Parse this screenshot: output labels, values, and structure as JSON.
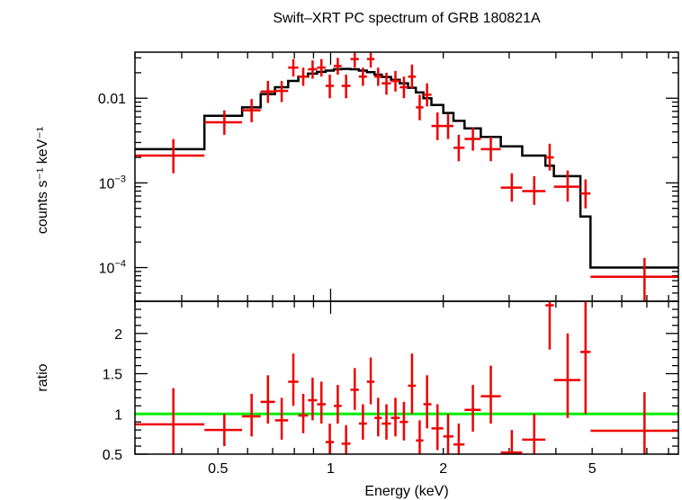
{
  "chart_data": {
    "type": "scatter",
    "title": "Swift–XRT PC spectrum of GRB 180821A",
    "xlabel": "Energy (keV)",
    "xscale": "log",
    "xlim": [
      0.3,
      8.5
    ],
    "x_ticks": [
      {
        "v": 0.5,
        "label": "0.5"
      },
      {
        "v": 1,
        "label": "1"
      },
      {
        "v": 2,
        "label": "2"
      },
      {
        "v": 5,
        "label": "5"
      }
    ],
    "top": {
      "ylabel": "counts s⁻¹ keV⁻¹",
      "yscale": "log",
      "ylim": [
        4e-05,
        0.035
      ],
      "y_tick_labels": [
        {
          "v": 0.01,
          "base": "0.01",
          "exp": ""
        },
        {
          "v": 0.001,
          "base": "10",
          "exp": "−3"
        },
        {
          "v": 0.0001,
          "base": "10",
          "exp": "−4"
        }
      ],
      "data": [
        {
          "x": 0.38,
          "xlo": 0.3,
          "xhi": 0.46,
          "y": 0.0021,
          "ylo": 0.0013,
          "yhi": 0.0033
        },
        {
          "x": 0.52,
          "xlo": 0.46,
          "xhi": 0.58,
          "y": 0.0052,
          "ylo": 0.0037,
          "yhi": 0.0072
        },
        {
          "x": 0.615,
          "xlo": 0.58,
          "xhi": 0.65,
          "y": 0.0072,
          "ylo": 0.0052,
          "yhi": 0.0098
        },
        {
          "x": 0.68,
          "xlo": 0.65,
          "xhi": 0.71,
          "y": 0.012,
          "ylo": 0.0088,
          "yhi": 0.016
        },
        {
          "x": 0.74,
          "xlo": 0.71,
          "xhi": 0.77,
          "y": 0.0122,
          "ylo": 0.009,
          "yhi": 0.016
        },
        {
          "x": 0.795,
          "xlo": 0.77,
          "xhi": 0.82,
          "y": 0.023,
          "ylo": 0.018,
          "yhi": 0.029
        },
        {
          "x": 0.845,
          "xlo": 0.82,
          "xhi": 0.87,
          "y": 0.018,
          "ylo": 0.014,
          "yhi": 0.023
        },
        {
          "x": 0.895,
          "xlo": 0.87,
          "xhi": 0.92,
          "y": 0.022,
          "ylo": 0.017,
          "yhi": 0.028
        },
        {
          "x": 0.945,
          "xlo": 0.92,
          "xhi": 0.97,
          "y": 0.023,
          "ylo": 0.018,
          "yhi": 0.029
        },
        {
          "x": 0.995,
          "xlo": 0.97,
          "xhi": 1.02,
          "y": 0.014,
          "ylo": 0.01,
          "yhi": 0.019
        },
        {
          "x": 1.045,
          "xlo": 1.02,
          "xhi": 1.07,
          "y": 0.024,
          "ylo": 0.019,
          "yhi": 0.03
        },
        {
          "x": 1.1,
          "xlo": 1.07,
          "xhi": 1.13,
          "y": 0.014,
          "ylo": 0.01,
          "yhi": 0.019
        },
        {
          "x": 1.16,
          "xlo": 1.13,
          "xhi": 1.19,
          "y": 0.029,
          "ylo": 0.023,
          "yhi": 0.035
        },
        {
          "x": 1.22,
          "xlo": 1.19,
          "xhi": 1.25,
          "y": 0.018,
          "ylo": 0.014,
          "yhi": 0.023
        },
        {
          "x": 1.28,
          "xlo": 1.25,
          "xhi": 1.31,
          "y": 0.029,
          "ylo": 0.023,
          "yhi": 0.035
        },
        {
          "x": 1.34,
          "xlo": 1.31,
          "xhi": 1.37,
          "y": 0.018,
          "ylo": 0.014,
          "yhi": 0.023
        },
        {
          "x": 1.41,
          "xlo": 1.37,
          "xhi": 1.45,
          "y": 0.015,
          "ylo": 0.011,
          "yhi": 0.02
        },
        {
          "x": 1.49,
          "xlo": 1.45,
          "xhi": 1.53,
          "y": 0.016,
          "ylo": 0.012,
          "yhi": 0.021
        },
        {
          "x": 1.57,
          "xlo": 1.53,
          "xhi": 1.61,
          "y": 0.0135,
          "ylo": 0.01,
          "yhi": 0.018
        },
        {
          "x": 1.65,
          "xlo": 1.61,
          "xhi": 1.69,
          "y": 0.018,
          "ylo": 0.013,
          "yhi": 0.025
        },
        {
          "x": 1.73,
          "xlo": 1.69,
          "xhi": 1.77,
          "y": 0.0078,
          "ylo": 0.0055,
          "yhi": 0.011
        },
        {
          "x": 1.81,
          "xlo": 1.77,
          "xhi": 1.86,
          "y": 0.011,
          "ylo": 0.008,
          "yhi": 0.015
        },
        {
          "x": 1.93,
          "xlo": 1.86,
          "xhi": 2.0,
          "y": 0.0047,
          "ylo": 0.0032,
          "yhi": 0.0068
        },
        {
          "x": 2.06,
          "xlo": 2.0,
          "xhi": 2.13,
          "y": 0.0047,
          "ylo": 0.0033,
          "yhi": 0.0065
        },
        {
          "x": 2.2,
          "xlo": 2.13,
          "xhi": 2.28,
          "y": 0.0026,
          "ylo": 0.0018,
          "yhi": 0.0037
        },
        {
          "x": 2.4,
          "xlo": 2.28,
          "xhi": 2.52,
          "y": 0.0033,
          "ylo": 0.0024,
          "yhi": 0.0045
        },
        {
          "x": 2.68,
          "xlo": 2.52,
          "xhi": 2.85,
          "y": 0.0025,
          "ylo": 0.0018,
          "yhi": 0.0035
        },
        {
          "x": 3.05,
          "xlo": 2.85,
          "xhi": 3.25,
          "y": 0.00088,
          "ylo": 0.0006,
          "yhi": 0.0013
        },
        {
          "x": 3.5,
          "xlo": 3.25,
          "xhi": 3.75,
          "y": 0.0008,
          "ylo": 0.00055,
          "yhi": 0.0012
        },
        {
          "x": 3.85,
          "xlo": 3.75,
          "xhi": 3.95,
          "y": 0.002,
          "ylo": 0.0014,
          "yhi": 0.0029
        },
        {
          "x": 4.3,
          "xlo": 3.95,
          "xhi": 4.65,
          "y": 0.0009,
          "ylo": 0.0006,
          "yhi": 0.0014
        },
        {
          "x": 4.8,
          "xlo": 4.65,
          "xhi": 4.95,
          "y": 0.00075,
          "ylo": 0.0005,
          "yhi": 0.0011
        },
        {
          "x": 6.9,
          "xlo": 4.95,
          "xhi": 8.5,
          "y": 7.8e-05,
          "ylo": 3.5e-05,
          "yhi": 0.00013
        }
      ],
      "model": [
        {
          "x0": 0.3,
          "x1": 0.46,
          "y": 0.0025
        },
        {
          "x0": 0.46,
          "x1": 0.58,
          "y": 0.0062
        },
        {
          "x0": 0.58,
          "x1": 0.65,
          "y": 0.0078
        },
        {
          "x0": 0.65,
          "x1": 0.71,
          "y": 0.0112
        },
        {
          "x0": 0.71,
          "x1": 0.77,
          "y": 0.0135
        },
        {
          "x0": 0.77,
          "x1": 0.82,
          "y": 0.016
        },
        {
          "x0": 0.82,
          "x1": 0.87,
          "y": 0.018
        },
        {
          "x0": 0.87,
          "x1": 0.92,
          "y": 0.0195
        },
        {
          "x0": 0.92,
          "x1": 0.97,
          "y": 0.0205
        },
        {
          "x0": 0.97,
          "x1": 1.02,
          "y": 0.0212
        },
        {
          "x0": 1.02,
          "x1": 1.07,
          "y": 0.022
        },
        {
          "x0": 1.07,
          "x1": 1.13,
          "y": 0.0222
        },
        {
          "x0": 1.13,
          "x1": 1.19,
          "y": 0.022
        },
        {
          "x0": 1.19,
          "x1": 1.25,
          "y": 0.0212
        },
        {
          "x0": 1.25,
          "x1": 1.31,
          "y": 0.0203
        },
        {
          "x0": 1.31,
          "x1": 1.37,
          "y": 0.019
        },
        {
          "x0": 1.37,
          "x1": 1.45,
          "y": 0.0178
        },
        {
          "x0": 1.45,
          "x1": 1.53,
          "y": 0.0165
        },
        {
          "x0": 1.53,
          "x1": 1.61,
          "y": 0.015
        },
        {
          "x0": 1.61,
          "x1": 1.69,
          "y": 0.0133
        },
        {
          "x0": 1.69,
          "x1": 1.77,
          "y": 0.0117
        },
        {
          "x0": 1.77,
          "x1": 1.86,
          "y": 0.01
        },
        {
          "x0": 1.86,
          "x1": 2.0,
          "y": 0.0083
        },
        {
          "x0": 2.0,
          "x1": 2.13,
          "y": 0.0067
        },
        {
          "x0": 2.13,
          "x1": 2.28,
          "y": 0.0054
        },
        {
          "x0": 2.28,
          "x1": 2.52,
          "y": 0.0044
        },
        {
          "x0": 2.52,
          "x1": 2.85,
          "y": 0.0035
        },
        {
          "x0": 2.85,
          "x1": 3.25,
          "y": 0.0027
        },
        {
          "x0": 3.25,
          "x1": 3.75,
          "y": 0.0021
        },
        {
          "x0": 3.75,
          "x1": 3.95,
          "y": 0.0016
        },
        {
          "x0": 3.95,
          "x1": 4.65,
          "y": 0.0012
        },
        {
          "x0": 4.65,
          "x1": 4.95,
          "y": 0.0004
        },
        {
          "x0": 4.95,
          "x1": 8.5,
          "y": 0.0001
        }
      ]
    },
    "bottom": {
      "ylabel": "ratio",
      "ylim": [
        0.5,
        2.4
      ],
      "y_ticks": [
        {
          "v": 0.5,
          "label": "0.5"
        },
        {
          "v": 1,
          "label": "1"
        },
        {
          "v": 1.5,
          "label": "1.5"
        },
        {
          "v": 2,
          "label": "2"
        }
      ],
      "reference_line": 1,
      "data": [
        {
          "x": 0.38,
          "xlo": 0.3,
          "xhi": 0.46,
          "y": 0.87,
          "ylo": 0.5,
          "yhi": 1.32
        },
        {
          "x": 0.52,
          "xlo": 0.46,
          "xhi": 0.58,
          "y": 0.8,
          "ylo": 0.6,
          "yhi": 1.0
        },
        {
          "x": 0.615,
          "xlo": 0.58,
          "xhi": 0.65,
          "y": 0.97,
          "ylo": 0.72,
          "yhi": 1.25
        },
        {
          "x": 0.68,
          "xlo": 0.65,
          "xhi": 0.71,
          "y": 1.15,
          "ylo": 0.88,
          "yhi": 1.48
        },
        {
          "x": 0.74,
          "xlo": 0.71,
          "xhi": 0.77,
          "y": 0.92,
          "ylo": 0.68,
          "yhi": 1.2
        },
        {
          "x": 0.795,
          "xlo": 0.77,
          "xhi": 0.82,
          "y": 1.4,
          "ylo": 1.1,
          "yhi": 1.75
        },
        {
          "x": 0.845,
          "xlo": 0.82,
          "xhi": 0.87,
          "y": 0.98,
          "ylo": 0.76,
          "yhi": 1.25
        },
        {
          "x": 0.895,
          "xlo": 0.87,
          "xhi": 0.92,
          "y": 1.17,
          "ylo": 0.92,
          "yhi": 1.45
        },
        {
          "x": 0.945,
          "xlo": 0.92,
          "xhi": 0.97,
          "y": 1.12,
          "ylo": 0.88,
          "yhi": 1.4
        },
        {
          "x": 0.995,
          "xlo": 0.97,
          "xhi": 1.02,
          "y": 0.65,
          "ylo": 0.5,
          "yhi": 0.88
        },
        {
          "x": 1.045,
          "xlo": 1.02,
          "xhi": 1.07,
          "y": 1.1,
          "ylo": 0.88,
          "yhi": 1.36
        },
        {
          "x": 1.1,
          "xlo": 1.07,
          "xhi": 1.13,
          "y": 0.63,
          "ylo": 0.47,
          "yhi": 0.86
        },
        {
          "x": 1.16,
          "xlo": 1.13,
          "xhi": 1.19,
          "y": 1.3,
          "ylo": 1.05,
          "yhi": 1.57
        },
        {
          "x": 1.22,
          "xlo": 1.19,
          "xhi": 1.25,
          "y": 0.88,
          "ylo": 0.68,
          "yhi": 1.12
        },
        {
          "x": 1.28,
          "xlo": 1.25,
          "xhi": 1.31,
          "y": 1.4,
          "ylo": 1.12,
          "yhi": 1.7
        },
        {
          "x": 1.34,
          "xlo": 1.31,
          "xhi": 1.37,
          "y": 0.95,
          "ylo": 0.72,
          "yhi": 1.2
        },
        {
          "x": 1.41,
          "xlo": 1.37,
          "xhi": 1.45,
          "y": 0.88,
          "ylo": 0.68,
          "yhi": 1.12
        },
        {
          "x": 1.49,
          "xlo": 1.45,
          "xhi": 1.53,
          "y": 0.95,
          "ylo": 0.72,
          "yhi": 1.2
        },
        {
          "x": 1.57,
          "xlo": 1.53,
          "xhi": 1.61,
          "y": 0.9,
          "ylo": 0.67,
          "yhi": 1.15
        },
        {
          "x": 1.65,
          "xlo": 1.61,
          "xhi": 1.69,
          "y": 1.35,
          "ylo": 1.0,
          "yhi": 1.75
        },
        {
          "x": 1.73,
          "xlo": 1.69,
          "xhi": 1.77,
          "y": 0.67,
          "ylo": 0.48,
          "yhi": 0.92
        },
        {
          "x": 1.81,
          "xlo": 1.77,
          "xhi": 1.86,
          "y": 1.12,
          "ylo": 0.82,
          "yhi": 1.48
        },
        {
          "x": 1.93,
          "xlo": 1.86,
          "xhi": 2.0,
          "y": 0.82,
          "ylo": 0.55,
          "yhi": 1.12
        },
        {
          "x": 2.06,
          "xlo": 2.0,
          "xhi": 2.13,
          "y": 0.72,
          "ylo": 0.5,
          "yhi": 1.0
        },
        {
          "x": 2.2,
          "xlo": 2.13,
          "xhi": 2.28,
          "y": 0.62,
          "ylo": 0.43,
          "yhi": 0.88
        },
        {
          "x": 2.4,
          "xlo": 2.28,
          "xhi": 2.52,
          "y": 1.05,
          "ylo": 0.78,
          "yhi": 1.36
        },
        {
          "x": 2.68,
          "xlo": 2.52,
          "xhi": 2.85,
          "y": 1.22,
          "ylo": 0.88,
          "yhi": 1.6
        },
        {
          "x": 3.05,
          "xlo": 2.85,
          "xhi": 3.25,
          "y": 0.52,
          "ylo": 0.3,
          "yhi": 0.8
        },
        {
          "x": 3.5,
          "xlo": 3.25,
          "xhi": 3.75,
          "y": 0.68,
          "ylo": 0.45,
          "yhi": 1.0
        },
        {
          "x": 3.85,
          "xlo": 3.75,
          "xhi": 3.95,
          "y": 2.35,
          "ylo": 1.8,
          "yhi": 3.0
        },
        {
          "x": 4.3,
          "xlo": 3.95,
          "xhi": 4.65,
          "y": 1.42,
          "ylo": 0.95,
          "yhi": 2.0
        },
        {
          "x": 4.8,
          "xlo": 4.65,
          "xhi": 4.95,
          "y": 1.77,
          "ylo": 1.0,
          "yhi": 2.7
        },
        {
          "x": 6.9,
          "xlo": 4.95,
          "xhi": 8.5,
          "y": 0.79,
          "ylo": 0.35,
          "yhi": 1.27
        }
      ]
    },
    "colors": {
      "data": "#ee0000",
      "model": "#000000",
      "reference": "#00ee00",
      "frame": "#000000"
    }
  }
}
